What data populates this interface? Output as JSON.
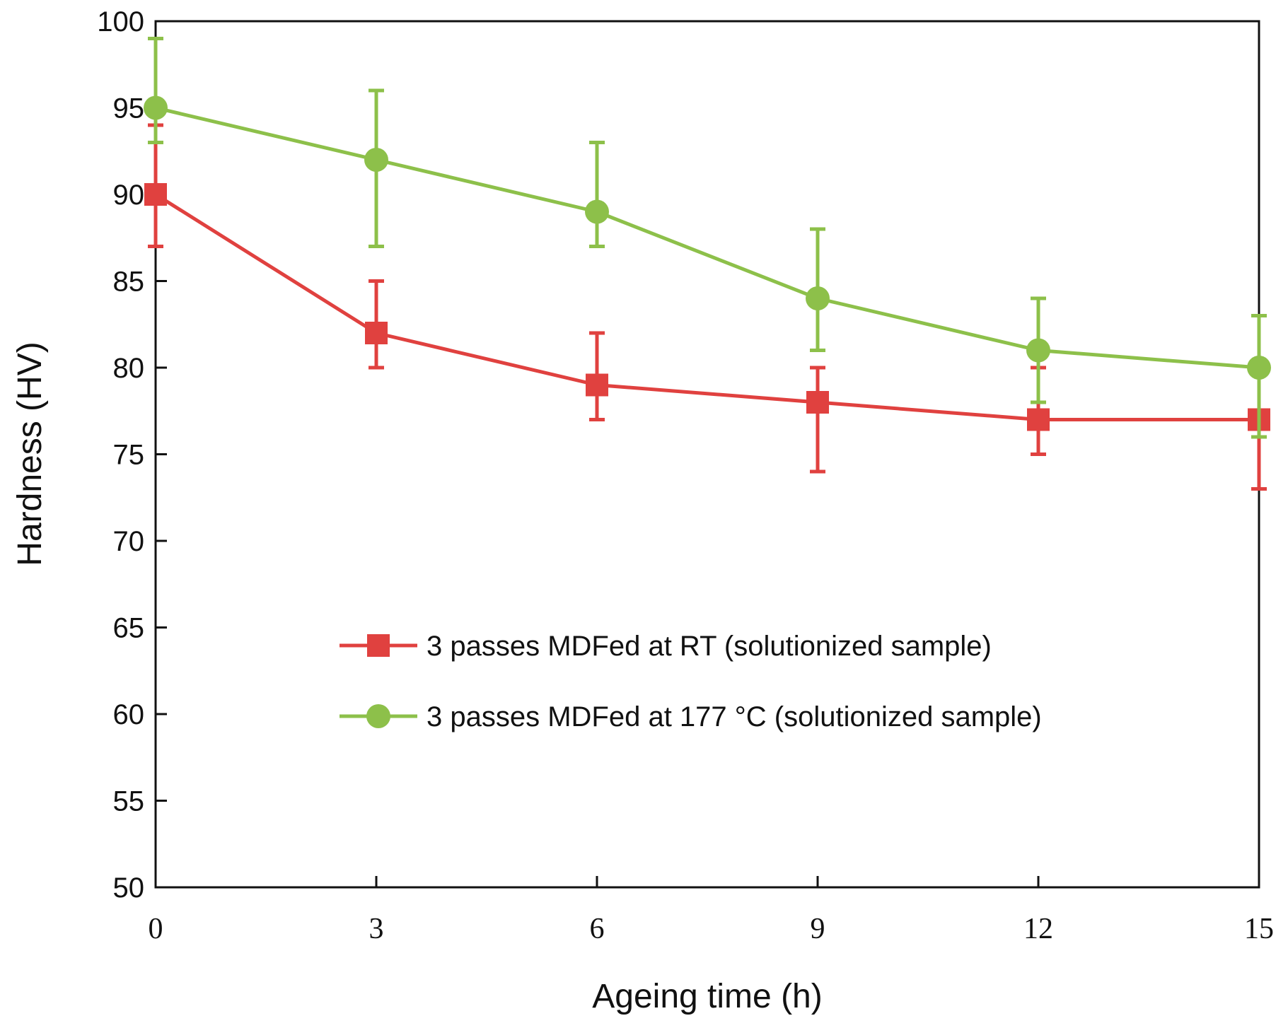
{
  "chart_data": {
    "type": "line",
    "title": "",
    "xlabel": "Ageing time (h)",
    "ylabel": "Hardness (HV)",
    "xlim": [
      0,
      15
    ],
    "ylim": [
      50,
      100
    ],
    "xticks": [
      0,
      3,
      6,
      9,
      12,
      15
    ],
    "yticks": [
      50,
      55,
      60,
      65,
      70,
      75,
      80,
      85,
      90,
      95,
      100
    ],
    "grid": false,
    "legend_position": "center-right",
    "series": [
      {
        "name": "3 passes MDFed at RT (solutionized sample)",
        "color": "#e0413f",
        "marker": "square",
        "x": [
          0,
          3,
          6,
          9,
          12,
          15
        ],
        "y": [
          90,
          82,
          79,
          78,
          77,
          77
        ],
        "error_low": [
          87,
          80,
          77,
          74,
          75,
          73
        ],
        "error_high": [
          94,
          85,
          82,
          80,
          80,
          77
        ]
      },
      {
        "name": "3 passes MDFed at 177 °C (solutionized sample)",
        "color": "#8dc04a",
        "marker": "circle",
        "x": [
          0,
          3,
          6,
          9,
          12,
          15
        ],
        "y": [
          95,
          92,
          89,
          84,
          81,
          80
        ],
        "error_low": [
          93,
          87,
          87,
          81,
          78,
          76
        ],
        "error_high": [
          99,
          96,
          93,
          88,
          84,
          83
        ]
      }
    ]
  }
}
